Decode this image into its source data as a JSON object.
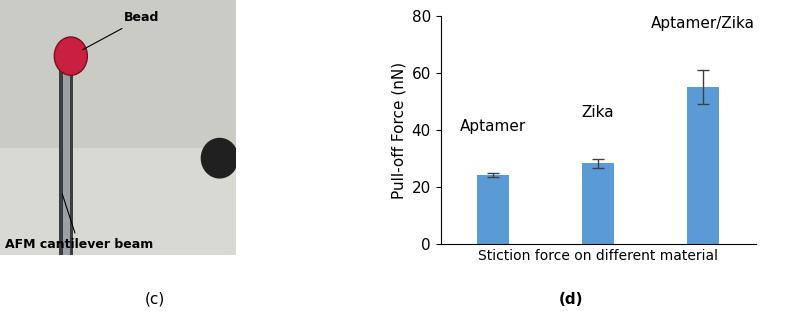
{
  "chart_data": {
    "type": "bar",
    "y_label": "Pull-off Force (nN)",
    "x_label": "Stiction force on different material",
    "categories": [
      "Aptamer",
      "Zika",
      "Aptamer/Zika"
    ],
    "values": [
      24.2,
      28.3,
      55.0
    ],
    "errors": [
      0.8,
      1.5,
      6.0
    ],
    "color": "#5b9bd5",
    "ylim": [
      0,
      80
    ],
    "yticks": [
      0,
      20,
      40,
      60,
      80
    ],
    "grid": false,
    "tick_labels": "y",
    "panel_label": "(d)"
  },
  "photo": {
    "panel_label": "(c)",
    "labels": {
      "bead": "Bead",
      "beam": "AFM cantilever beam"
    }
  }
}
